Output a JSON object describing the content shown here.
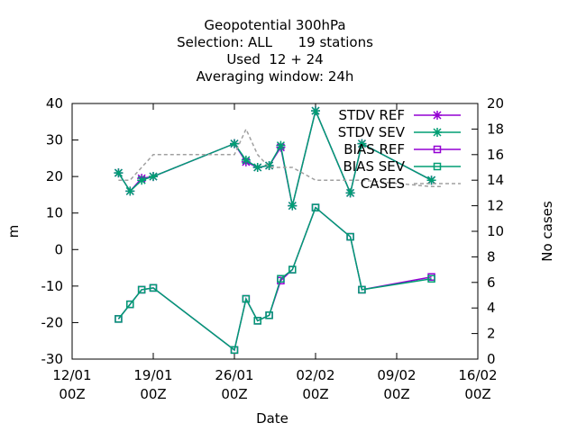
{
  "chart_data": {
    "type": "line",
    "title_lines": [
      "Geopotential 300hPa",
      "Selection: ALL      19 stations",
      "Used  12 + 24",
      "Averaging window: 24h"
    ],
    "xlabel": "Date",
    "ylabel": "m",
    "y2label": "No cases",
    "x_ticks": [
      {
        "x": 0,
        "line1": "12/01",
        "line2": "00Z"
      },
      {
        "x": 7,
        "line1": "19/01",
        "line2": "00Z"
      },
      {
        "x": 14,
        "line1": "26/01",
        "line2": "00Z"
      },
      {
        "x": 21,
        "line1": "02/02",
        "line2": "00Z"
      },
      {
        "x": 28,
        "line1": "09/02",
        "line2": "00Z"
      },
      {
        "x": 35,
        "line1": "16/02",
        "line2": "00Z"
      }
    ],
    "xlim": [
      0,
      35
    ],
    "ylim": [
      -30,
      40
    ],
    "y_ticks": [
      -30,
      -20,
      -10,
      0,
      10,
      20,
      30,
      40
    ],
    "y2lim": [
      0,
      20
    ],
    "y2_ticks": [
      0,
      2,
      4,
      6,
      8,
      10,
      12,
      14,
      16,
      18,
      20
    ],
    "legend_position": "top-right",
    "colors": {
      "ref": "#9400d3",
      "sev": "#009e73",
      "cases": "#a0a0a0"
    },
    "series": [
      {
        "name": "STDV REF",
        "kind": "stdv",
        "axis": "y",
        "color": "#9400d3",
        "marker": "star",
        "points": [
          [
            4,
            21
          ],
          [
            5,
            16
          ],
          [
            6,
            19.5
          ],
          [
            7,
            20
          ],
          [
            14,
            29
          ],
          [
            15,
            24
          ],
          [
            16,
            22.5
          ],
          [
            17,
            23
          ],
          [
            18,
            28
          ],
          [
            19,
            12
          ],
          [
            21,
            38
          ],
          [
            24,
            15.5
          ],
          [
            25,
            29
          ],
          [
            31,
            19
          ]
        ]
      },
      {
        "name": "STDV SEV",
        "kind": "stdv",
        "axis": "y",
        "color": "#009e73",
        "marker": "star",
        "points": [
          [
            4,
            21
          ],
          [
            5,
            16
          ],
          [
            6,
            19
          ],
          [
            7,
            20
          ],
          [
            14,
            29
          ],
          [
            15,
            24.5
          ],
          [
            16,
            22.5
          ],
          [
            17,
            23
          ],
          [
            18,
            28.5
          ],
          [
            19,
            12
          ],
          [
            21,
            38
          ],
          [
            24,
            15.5
          ],
          [
            25,
            29
          ],
          [
            31,
            19
          ]
        ]
      },
      {
        "name": "BIAS REF",
        "kind": "bias",
        "axis": "y",
        "color": "#9400d3",
        "marker": "square",
        "points": [
          [
            4,
            -19
          ],
          [
            5,
            -15
          ],
          [
            6,
            -11
          ],
          [
            7,
            -10.5
          ],
          [
            14,
            -27.5
          ],
          [
            15,
            -13.5
          ],
          [
            16,
            -19.5
          ],
          [
            17,
            -18
          ],
          [
            18,
            -8.5
          ],
          [
            19,
            -5.5
          ],
          [
            21,
            11.5
          ],
          [
            24,
            3.5
          ],
          [
            25,
            -11
          ],
          [
            31,
            -7.5
          ]
        ]
      },
      {
        "name": "BIAS SEV",
        "kind": "bias",
        "axis": "y",
        "color": "#009e73",
        "marker": "square",
        "points": [
          [
            4,
            -19
          ],
          [
            5,
            -15
          ],
          [
            6,
            -11
          ],
          [
            7,
            -10.5
          ],
          [
            14,
            -27.5
          ],
          [
            15,
            -13.5
          ],
          [
            16,
            -19.5
          ],
          [
            17,
            -18
          ],
          [
            18,
            -8
          ],
          [
            19,
            -5.5
          ],
          [
            21,
            11.5
          ],
          [
            24,
            3.5
          ],
          [
            25,
            -11
          ],
          [
            31,
            -8
          ]
        ]
      },
      {
        "name": "CASES",
        "kind": "cases",
        "axis": "y2",
        "color": "#a0a0a0",
        "marker": "none",
        "points": [
          [
            4,
            14
          ],
          [
            5,
            14
          ],
          [
            6,
            15
          ],
          [
            7,
            16
          ],
          [
            14,
            16
          ],
          [
            15,
            18
          ],
          [
            16,
            16
          ],
          [
            17,
            15
          ],
          [
            18,
            15
          ],
          [
            19,
            15
          ],
          [
            20,
            14.5
          ],
          [
            21,
            14
          ],
          [
            24,
            14
          ],
          [
            25,
            14
          ],
          [
            31,
            13.5
          ],
          [
            32,
            13.5
          ]
        ]
      }
    ]
  }
}
